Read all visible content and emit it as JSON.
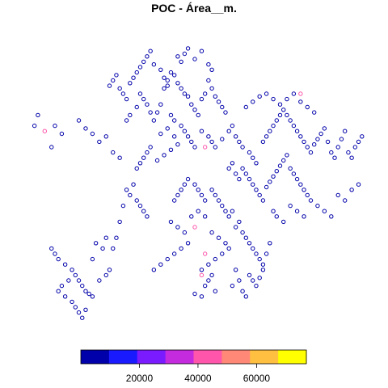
{
  "chart_data": {
    "type": "scatter",
    "title": "POC - Área__m.",
    "legend": {
      "position": "bottom",
      "kind": "color-bar",
      "range": [
        0,
        77000
      ],
      "colors": [
        "#0000AA",
        "#1A1AFF",
        "#7A1AFF",
        "#C42ADE",
        "#FF55AA",
        "#FF8877",
        "#FFBF40",
        "#FFFF00"
      ],
      "ticks": [
        {
          "value": 20000,
          "label": "20000"
        },
        {
          "value": 40000,
          "label": "40000"
        },
        {
          "value": 60000,
          "label": "60000"
        }
      ]
    },
    "axes": {
      "visible": false,
      "x_range": [
        0,
        100
      ],
      "y_range": [
        0,
        100
      ]
    },
    "point_style": {
      "shape": "open-circle"
    },
    "series": [
      {
        "color": "#0000AA",
        "points": [
          [
            4,
            72
          ],
          [
            3,
            68
          ],
          [
            9,
            68
          ],
          [
            11,
            65
          ],
          [
            8,
            60
          ],
          [
            16,
            70
          ],
          [
            18,
            67
          ],
          [
            20,
            65
          ],
          [
            22,
            62
          ],
          [
            24,
            64
          ],
          [
            26,
            58
          ],
          [
            28,
            56
          ],
          [
            30,
            70
          ],
          [
            31,
            72
          ],
          [
            33,
            75
          ],
          [
            34,
            80
          ],
          [
            35,
            78
          ],
          [
            36,
            76
          ],
          [
            37,
            73
          ],
          [
            38,
            70
          ],
          [
            40,
            76
          ],
          [
            41,
            82
          ],
          [
            42,
            85
          ],
          [
            43,
            88
          ],
          [
            44,
            87
          ],
          [
            45,
            84
          ],
          [
            46,
            82
          ],
          [
            47,
            80
          ],
          [
            48,
            79
          ],
          [
            49,
            76
          ],
          [
            50,
            74
          ],
          [
            51,
            72
          ],
          [
            52,
            78
          ],
          [
            53,
            80
          ],
          [
            54,
            85
          ],
          [
            55,
            82
          ],
          [
            56,
            79
          ],
          [
            57,
            77
          ],
          [
            58,
            75
          ],
          [
            59,
            73
          ],
          [
            45,
            94
          ],
          [
            46,
            92
          ],
          [
            47,
            95
          ],
          [
            48,
            97
          ],
          [
            50,
            93
          ],
          [
            52,
            96
          ],
          [
            54,
            91
          ],
          [
            55,
            89
          ],
          [
            38,
            91
          ],
          [
            40,
            89
          ],
          [
            41,
            86
          ],
          [
            42,
            83
          ],
          [
            39,
            73
          ],
          [
            43,
            72
          ],
          [
            44,
            70
          ],
          [
            46,
            68
          ],
          [
            47,
            66
          ],
          [
            48,
            64
          ],
          [
            49,
            62
          ],
          [
            50,
            60
          ],
          [
            52,
            66
          ],
          [
            54,
            64
          ],
          [
            55,
            62
          ],
          [
            56,
            60
          ],
          [
            58,
            63
          ],
          [
            60,
            66
          ],
          [
            61,
            68
          ],
          [
            62,
            64
          ],
          [
            63,
            62
          ],
          [
            64,
            60
          ],
          [
            66,
            58
          ],
          [
            67,
            56
          ],
          [
            68,
            54
          ],
          [
            70,
            62
          ],
          [
            71,
            64
          ],
          [
            72,
            66
          ],
          [
            73,
            68
          ],
          [
            74,
            70
          ],
          [
            75,
            72
          ],
          [
            76,
            74
          ],
          [
            77,
            72
          ],
          [
            78,
            70
          ],
          [
            79,
            68
          ],
          [
            80,
            66
          ],
          [
            81,
            64
          ],
          [
            82,
            62
          ],
          [
            83,
            60
          ],
          [
            84,
            58
          ],
          [
            85,
            61
          ],
          [
            86,
            63
          ],
          [
            87,
            65
          ],
          [
            88,
            67
          ],
          [
            89,
            62
          ],
          [
            90,
            58
          ],
          [
            91,
            56
          ],
          [
            92,
            60
          ],
          [
            93,
            63
          ],
          [
            94,
            66
          ],
          [
            95,
            58
          ],
          [
            96,
            56
          ],
          [
            97,
            60
          ],
          [
            98,
            62
          ],
          [
            99,
            64
          ],
          [
            65,
            75
          ],
          [
            67,
            77
          ],
          [
            69,
            79
          ],
          [
            71,
            80
          ],
          [
            73,
            78
          ],
          [
            75,
            76
          ],
          [
            77,
            78
          ],
          [
            79,
            80
          ],
          [
            81,
            77
          ],
          [
            83,
            75
          ],
          [
            85,
            73
          ],
          [
            60,
            52
          ],
          [
            61,
            54
          ],
          [
            62,
            50
          ],
          [
            63,
            48
          ],
          [
            64,
            52
          ],
          [
            65,
            50
          ],
          [
            66,
            48
          ],
          [
            67,
            46
          ],
          [
            68,
            44
          ],
          [
            69,
            42
          ],
          [
            70,
            40
          ],
          [
            71,
            45
          ],
          [
            72,
            47
          ],
          [
            73,
            49
          ],
          [
            74,
            51
          ],
          [
            75,
            53
          ],
          [
            76,
            55
          ],
          [
            77,
            57
          ],
          [
            78,
            52
          ],
          [
            79,
            50
          ],
          [
            80,
            48
          ],
          [
            81,
            46
          ],
          [
            82,
            44
          ],
          [
            83,
            42
          ],
          [
            55,
            44
          ],
          [
            56,
            42
          ],
          [
            57,
            40
          ],
          [
            58,
            38
          ],
          [
            59,
            36
          ],
          [
            60,
            34
          ],
          [
            50,
            46
          ],
          [
            51,
            44
          ],
          [
            52,
            42
          ],
          [
            53,
            40
          ],
          [
            48,
            48
          ],
          [
            47,
            46
          ],
          [
            46,
            44
          ],
          [
            45,
            42
          ],
          [
            44,
            40
          ],
          [
            62,
            30
          ],
          [
            63,
            32
          ],
          [
            64,
            28
          ],
          [
            65,
            26
          ],
          [
            66,
            24
          ],
          [
            67,
            22
          ],
          [
            68,
            20
          ],
          [
            69,
            18
          ],
          [
            70,
            16
          ],
          [
            71,
            20
          ],
          [
            72,
            24
          ],
          [
            60,
            22
          ],
          [
            58,
            20
          ],
          [
            56,
            18
          ],
          [
            54,
            16
          ],
          [
            52,
            14
          ],
          [
            66,
            12
          ],
          [
            67,
            10
          ],
          [
            68,
            8
          ],
          [
            69,
            11
          ],
          [
            70,
            14
          ],
          [
            62,
            14
          ],
          [
            63,
            10
          ],
          [
            64,
            6
          ],
          [
            65,
            4
          ],
          [
            61,
            8
          ],
          [
            53,
            8
          ],
          [
            54,
            10
          ],
          [
            55,
            12
          ],
          [
            56,
            6
          ],
          [
            52,
            4
          ],
          [
            50,
            5
          ],
          [
            30,
            44
          ],
          [
            31,
            42
          ],
          [
            32,
            46
          ],
          [
            33,
            40
          ],
          [
            34,
            38
          ],
          [
            35,
            36
          ],
          [
            36,
            34
          ],
          [
            29,
            38
          ],
          [
            28,
            32
          ],
          [
            27,
            26
          ],
          [
            26,
            22
          ],
          [
            8,
            22
          ],
          [
            9,
            20
          ],
          [
            10,
            18
          ],
          [
            12,
            16
          ],
          [
            14,
            14
          ],
          [
            15,
            12
          ],
          [
            16,
            10
          ],
          [
            17,
            8
          ],
          [
            18,
            6
          ],
          [
            19,
            5
          ],
          [
            20,
            4
          ],
          [
            13,
            10
          ],
          [
            11,
            8
          ],
          [
            10,
            6
          ],
          [
            12,
            4
          ],
          [
            14,
            2
          ],
          [
            15,
            0
          ],
          [
            16,
            -2
          ],
          [
            17,
            -4
          ],
          [
            18,
            -1
          ],
          [
            24,
            12
          ],
          [
            22,
            10
          ],
          [
            25,
            14
          ],
          [
            23,
            22
          ],
          [
            24,
            26
          ],
          [
            21,
            24
          ],
          [
            20,
            18
          ],
          [
            38,
            14
          ],
          [
            40,
            16
          ],
          [
            42,
            18
          ],
          [
            44,
            20
          ],
          [
            46,
            22
          ],
          [
            48,
            24
          ],
          [
            47,
            28
          ],
          [
            45,
            30
          ],
          [
            43,
            32
          ],
          [
            49,
            34
          ],
          [
            51,
            36
          ],
          [
            53,
            34
          ],
          [
            55,
            28
          ],
          [
            57,
            26
          ],
          [
            59,
            24
          ],
          [
            61,
            36
          ],
          [
            73,
            36
          ],
          [
            74,
            34
          ],
          [
            76,
            32
          ],
          [
            78,
            38
          ],
          [
            80,
            36
          ],
          [
            82,
            34
          ],
          [
            84,
            40
          ],
          [
            86,
            38
          ],
          [
            88,
            36
          ],
          [
            90,
            34
          ],
          [
            92,
            42
          ],
          [
            94,
            40
          ],
          [
            96,
            44
          ],
          [
            98,
            46
          ],
          [
            37,
            60
          ],
          [
            36,
            58
          ],
          [
            35,
            56
          ],
          [
            34,
            54
          ],
          [
            33,
            52
          ],
          [
            39,
            55
          ],
          [
            41,
            57
          ],
          [
            43,
            59
          ],
          [
            45,
            61
          ],
          [
            40,
            65
          ],
          [
            42,
            67
          ],
          [
            44,
            64
          ],
          [
            25,
            83
          ],
          [
            26,
            85
          ],
          [
            27,
            87
          ],
          [
            28,
            82
          ],
          [
            29,
            80
          ],
          [
            30,
            78
          ],
          [
            31,
            84
          ],
          [
            32,
            86
          ],
          [
            33,
            88
          ],
          [
            34,
            90
          ],
          [
            35,
            92
          ],
          [
            36,
            94
          ],
          [
            37,
            96
          ]
        ]
      },
      {
        "color": "#FF55AA",
        "points": [
          [
            6,
            66
          ],
          [
            53,
            60
          ],
          [
            81,
            80
          ],
          [
            50,
            30
          ],
          [
            53,
            20
          ],
          [
            52,
            12
          ]
        ]
      }
    ]
  }
}
